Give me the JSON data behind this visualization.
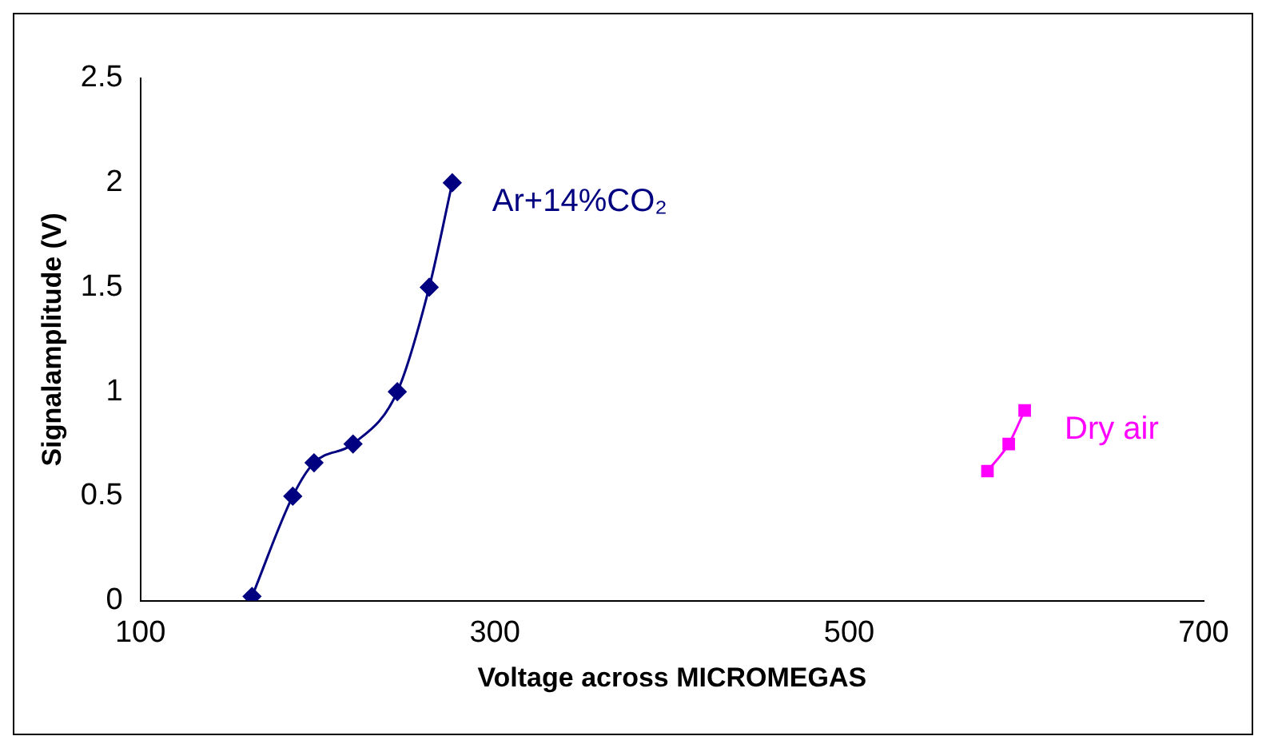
{
  "chart_data": {
    "type": "line",
    "xlabel": "Voltage across MICROMEGAS",
    "ylabel": "Signalamplitude (V)",
    "series": [
      {
        "name": "Ar+14%CO₂",
        "color": "#000080",
        "marker": "diamond",
        "x": [
          163,
          186,
          198,
          220,
          245,
          263,
          276
        ],
        "values": [
          0.02,
          0.5,
          0.66,
          0.75,
          1.0,
          1.5,
          2.0
        ]
      },
      {
        "name": "Dry air",
        "color": "#ff00ff",
        "marker": "square",
        "x": [
          578,
          590,
          599
        ],
        "values": [
          0.62,
          0.75,
          0.91
        ]
      }
    ],
    "xlim": [
      100,
      700
    ],
    "xticks": [
      100,
      300,
      500,
      700
    ],
    "ylim": [
      0,
      2.5
    ],
    "yticks": [
      0,
      0.5,
      1,
      1.5,
      2,
      2.5
    ],
    "grid": false,
    "legend": false
  }
}
